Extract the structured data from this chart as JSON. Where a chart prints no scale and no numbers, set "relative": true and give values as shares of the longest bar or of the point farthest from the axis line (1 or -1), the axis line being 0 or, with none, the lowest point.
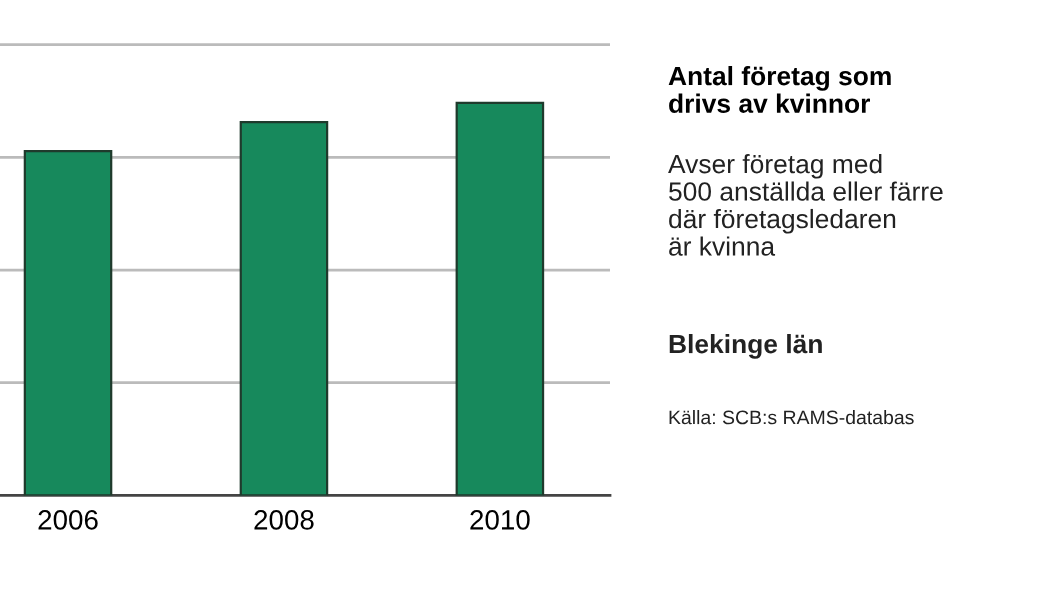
{
  "chart_data": {
    "type": "bar",
    "title": "Antal företag som\ndrivs av kvinnor",
    "subtitle": "Avser företag med\n500 anställda eller färre\ndär företagsledaren\när kvinna",
    "annotations": [
      "Blekinge län",
      "Källa: SCB:s RAMS-databas"
    ],
    "categories": [
      "2006",
      "2008",
      "2010"
    ],
    "series": [
      {
        "color": "#17895c",
        "values": [
          0.877,
          0.951,
          1
        ]
      }
    ],
    "relative": true,
    "grid": "y"
  }
}
